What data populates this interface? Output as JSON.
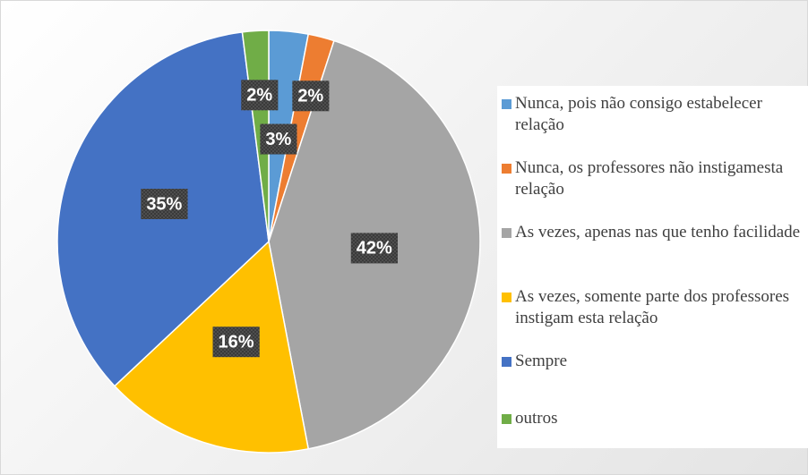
{
  "chart_data": {
    "type": "pie",
    "categories": [
      "Nunca, pois não consigo estabelecer relação",
      "Nunca, os professores não instigamesta relação",
      "As vezes, apenas nas que tenho facilidade",
      "As vezes, somente parte dos professores instigam esta relação",
      "Sempre",
      "outros"
    ],
    "values": [
      3,
      2,
      42,
      16,
      35,
      2
    ],
    "value_labels": [
      "3%",
      "2%",
      "42%",
      "16%",
      "35%",
      "2%"
    ],
    "colors": [
      "#5b9bd5",
      "#ed7d31",
      "#a5a5a5",
      "#ffc000",
      "#4472c4",
      "#70ad47"
    ],
    "legend": "right"
  }
}
